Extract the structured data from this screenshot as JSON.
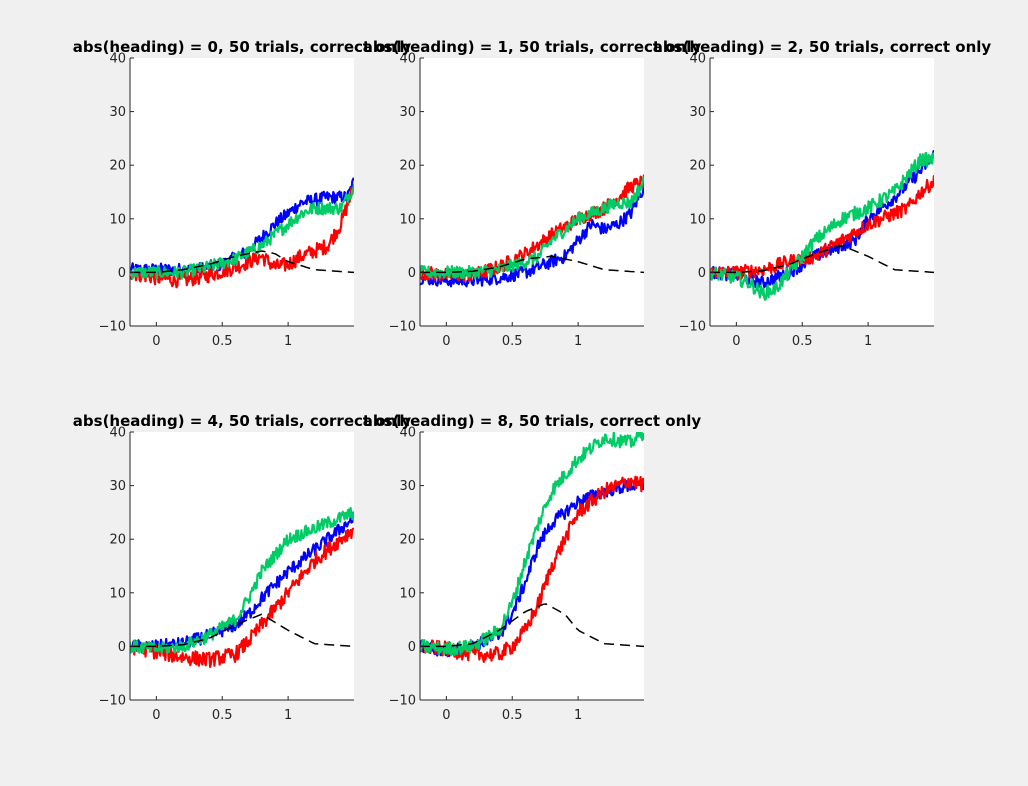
{
  "chart_data": [
    {
      "type": "line",
      "title": "abs(heading) = 0, 50 trials, correct only",
      "xlim": [
        -0.2,
        1.5
      ],
      "ylim": [
        -10,
        40
      ],
      "xticks": [
        0,
        0.5,
        1
      ],
      "xtick_labels": [
        "0",
        "0.5",
        "1"
      ],
      "yticks": [
        -10,
        0,
        10,
        20,
        30,
        40
      ],
      "ytick_labels": [
        "−10",
        "0",
        "10",
        "20",
        "30",
        "40"
      ],
      "grid": false,
      "series": [
        {
          "name": "blue",
          "color": "#0000ff",
          "noise": 1.2,
          "x": [
            -0.2,
            0,
            0.3,
            0.5,
            0.7,
            0.9,
            1.0,
            1.1,
            1.3,
            1.45,
            1.5
          ],
          "y": [
            0.5,
            0.5,
            0.5,
            1.5,
            4,
            9,
            11,
            13,
            14,
            14,
            17
          ]
        },
        {
          "name": "red",
          "color": "#ff0000",
          "noise": 1.4,
          "x": [
            -0.2,
            0,
            0.2,
            0.4,
            0.6,
            0.8,
            0.9,
            1.0,
            1.1,
            1.2,
            1.3,
            1.4,
            1.5
          ],
          "y": [
            0,
            -1,
            -1.5,
            -0.5,
            1,
            3,
            1,
            1.5,
            3,
            4,
            5,
            9,
            16
          ]
        },
        {
          "name": "green",
          "color": "#00cc66",
          "noise": 1.2,
          "x": [
            -0.2,
            0,
            0.2,
            0.4,
            0.6,
            0.8,
            1.0,
            1.1,
            1.2,
            1.4,
            1.5
          ],
          "y": [
            0,
            0,
            0,
            1,
            2.5,
            5,
            9,
            11,
            12,
            12,
            16
          ]
        },
        {
          "name": "dashed",
          "color": "#000000",
          "dashed": true,
          "noise": 0,
          "x": [
            -0.2,
            0,
            0.2,
            0.4,
            0.6,
            0.8,
            0.9,
            1.0,
            1.2,
            1.5
          ],
          "y": [
            0,
            0,
            0.5,
            1.5,
            3,
            4,
            3.5,
            2,
            0.5,
            0
          ]
        }
      ]
    },
    {
      "type": "line",
      "title": "abs(heading) = 1, 50 trials, correct only",
      "xlim": [
        -0.2,
        1.5
      ],
      "ylim": [
        -10,
        40
      ],
      "xticks": [
        0,
        0.5,
        1
      ],
      "xtick_labels": [
        "0",
        "0.5",
        "1"
      ],
      "yticks": [
        -10,
        0,
        10,
        20,
        30,
        40
      ],
      "ytick_labels": [
        "−10",
        "0",
        "10",
        "20",
        "30",
        "40"
      ],
      "grid": false,
      "series": [
        {
          "name": "blue",
          "color": "#0000ff",
          "noise": 1.2,
          "x": [
            -0.2,
            0,
            0.2,
            0.4,
            0.6,
            0.8,
            0.9,
            1.0,
            1.1,
            1.2,
            1.3,
            1.4,
            1.5
          ],
          "y": [
            -1,
            -1.5,
            -1.5,
            -1,
            0,
            2,
            3,
            6,
            9,
            8,
            9,
            11,
            16
          ]
        },
        {
          "name": "red",
          "color": "#ff0000",
          "noise": 1.3,
          "x": [
            -0.2,
            0,
            0.2,
            0.4,
            0.6,
            0.8,
            1.0,
            1.2,
            1.3,
            1.4,
            1.5
          ],
          "y": [
            0,
            -0.5,
            -0.5,
            1,
            3.5,
            7,
            10,
            12,
            14,
            16,
            17
          ]
        },
        {
          "name": "green",
          "color": "#00cc66",
          "noise": 1.2,
          "x": [
            -0.2,
            0,
            0.2,
            0.4,
            0.6,
            0.7,
            0.8,
            1.0,
            1.1,
            1.2,
            1.3,
            1.4,
            1.5
          ],
          "y": [
            0,
            0,
            0,
            0.5,
            2,
            3,
            6,
            10,
            11,
            12,
            13,
            13,
            17
          ]
        },
        {
          "name": "dashed",
          "color": "#000000",
          "dashed": true,
          "noise": 0,
          "x": [
            -0.2,
            0,
            0.2,
            0.4,
            0.6,
            0.8,
            1.0,
            1.2,
            1.5
          ],
          "y": [
            0,
            0,
            0.2,
            1,
            2.5,
            3,
            2,
            0.5,
            0
          ]
        }
      ]
    },
    {
      "type": "line",
      "title": "abs(heading) = 2, 50 trials, correct only",
      "xlim": [
        -0.2,
        1.5
      ],
      "ylim": [
        -10,
        40
      ],
      "xticks": [
        0,
        0.5,
        1
      ],
      "xtick_labels": [
        "0",
        "0.5",
        "1"
      ],
      "yticks": [
        -10,
        0,
        10,
        20,
        30,
        40
      ],
      "ytick_labels": [
        "−10",
        "0",
        "10",
        "20",
        "30",
        "40"
      ],
      "grid": false,
      "series": [
        {
          "name": "blue",
          "color": "#0000ff",
          "noise": 1.2,
          "x": [
            -0.2,
            0,
            0.2,
            0.4,
            0.6,
            0.8,
            0.9,
            1.0,
            1.2,
            1.4,
            1.5
          ],
          "y": [
            0,
            -0.5,
            -2,
            0,
            3,
            5,
            6,
            10,
            14,
            19,
            22
          ]
        },
        {
          "name": "red",
          "color": "#ff0000",
          "noise": 1.3,
          "x": [
            -0.2,
            0,
            0.2,
            0.4,
            0.6,
            0.8,
            1.0,
            1.2,
            1.3,
            1.4,
            1.5
          ],
          "y": [
            0,
            0,
            0.5,
            2,
            3,
            6,
            9,
            11,
            12,
            15,
            17
          ]
        },
        {
          "name": "green",
          "color": "#00cc66",
          "noise": 1.3,
          "x": [
            -0.2,
            0,
            0.1,
            0.2,
            0.3,
            0.4,
            0.5,
            0.6,
            0.7,
            0.8,
            1.0,
            1.2,
            1.3,
            1.4,
            1.5
          ],
          "y": [
            0,
            -1,
            -2,
            -4,
            -3,
            0,
            3,
            6,
            8,
            10,
            12,
            15,
            18,
            21,
            21
          ]
        },
        {
          "name": "dashed",
          "color": "#000000",
          "dashed": true,
          "noise": 0,
          "x": [
            -0.2,
            0,
            0.2,
            0.4,
            0.6,
            0.8,
            1.0,
            1.2,
            1.5
          ],
          "y": [
            0,
            0,
            0.3,
            1.5,
            3.5,
            5,
            3,
            0.5,
            0
          ]
        }
      ]
    },
    {
      "type": "line",
      "title": "abs(heading) = 4, 50 trials, correct only",
      "xlim": [
        -0.2,
        1.5
      ],
      "ylim": [
        -10,
        40
      ],
      "xticks": [
        0,
        0.5,
        1
      ],
      "xtick_labels": [
        "0",
        "0.5",
        "1"
      ],
      "yticks": [
        -10,
        0,
        10,
        20,
        30,
        40
      ],
      "ytick_labels": [
        "−10",
        "0",
        "10",
        "20",
        "30",
        "40"
      ],
      "grid": false,
      "series": [
        {
          "name": "blue",
          "color": "#0000ff",
          "noise": 1.2,
          "x": [
            -0.2,
            0,
            0.2,
            0.4,
            0.6,
            0.7,
            0.8,
            1.0,
            1.2,
            1.5
          ],
          "y": [
            0,
            0,
            0.5,
            2,
            4,
            6,
            9,
            14,
            18,
            24
          ]
        },
        {
          "name": "red",
          "color": "#ff0000",
          "noise": 1.4,
          "x": [
            -0.2,
            0,
            0.2,
            0.4,
            0.6,
            0.7,
            0.8,
            1.0,
            1.2,
            1.5
          ],
          "y": [
            0,
            -1,
            -2,
            -2.5,
            -1.5,
            1,
            4,
            10,
            16,
            22
          ]
        },
        {
          "name": "green",
          "color": "#00cc66",
          "noise": 1.2,
          "x": [
            -0.2,
            0,
            0.2,
            0.4,
            0.6,
            0.7,
            0.8,
            0.9,
            1.0,
            1.2,
            1.3,
            1.4,
            1.5
          ],
          "y": [
            0,
            -0.5,
            0,
            2,
            5,
            9,
            14,
            17,
            20,
            22,
            23,
            24,
            25
          ]
        },
        {
          "name": "dashed",
          "color": "#000000",
          "dashed": true,
          "noise": 0,
          "x": [
            -0.2,
            0,
            0.2,
            0.4,
            0.6,
            0.8,
            1.0,
            1.2,
            1.5
          ],
          "y": [
            0,
            0,
            0.3,
            1.5,
            4,
            6,
            3,
            0.5,
            0
          ]
        }
      ]
    },
    {
      "type": "line",
      "title": "abs(heading) = 8, 50 trials, correct only",
      "xlim": [
        -0.2,
        1.5
      ],
      "ylim": [
        -10,
        40
      ],
      "xticks": [
        0,
        0.5,
        1
      ],
      "xtick_labels": [
        "0",
        "0.5",
        "1"
      ],
      "yticks": [
        -10,
        0,
        10,
        20,
        30,
        40
      ],
      "ytick_labels": [
        "−10",
        "0",
        "10",
        "20",
        "30",
        "40"
      ],
      "grid": false,
      "series": [
        {
          "name": "blue",
          "color": "#0000ff",
          "noise": 1.2,
          "x": [
            -0.2,
            0,
            0.2,
            0.4,
            0.5,
            0.6,
            0.7,
            0.8,
            1.0,
            1.2,
            1.4,
            1.5
          ],
          "y": [
            0,
            -1,
            0,
            2,
            6,
            12,
            19,
            23,
            27,
            29,
            30,
            30
          ]
        },
        {
          "name": "red",
          "color": "#ff0000",
          "noise": 1.4,
          "x": [
            -0.2,
            0,
            0.2,
            0.4,
            0.5,
            0.6,
            0.7,
            0.8,
            0.9,
            1.0,
            1.2,
            1.4,
            1.5
          ],
          "y": [
            0,
            -0.5,
            -1.5,
            -1.5,
            0,
            3,
            8,
            15,
            20,
            25,
            29,
            31,
            30
          ]
        },
        {
          "name": "green",
          "color": "#00cc66",
          "noise": 1.3,
          "x": [
            -0.2,
            0,
            0.2,
            0.4,
            0.5,
            0.6,
            0.7,
            0.8,
            1.0,
            1.2,
            1.4,
            1.5
          ],
          "y": [
            0,
            -0.5,
            0,
            3,
            8,
            16,
            23,
            29,
            35,
            39,
            38,
            40
          ]
        },
        {
          "name": "dashed",
          "color": "#000000",
          "dashed": true,
          "noise": 0,
          "x": [
            -0.2,
            0,
            0.2,
            0.4,
            0.6,
            0.75,
            0.9,
            1.0,
            1.2,
            1.5
          ],
          "y": [
            0,
            0,
            0.5,
            3,
            6.5,
            8,
            6,
            3,
            0.5,
            0
          ]
        }
      ]
    }
  ]
}
